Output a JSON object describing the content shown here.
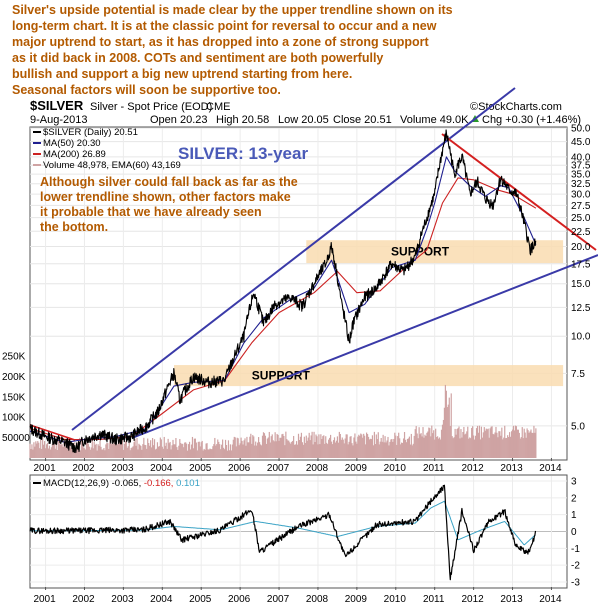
{
  "commentary": [
    "Silver's upside potential is made clear by the upper trendline shown on its",
    "long-term chart. It is at the classic point for reversal to occur and a new",
    "major uptrend to start, as it has dropped into a zone of strong support",
    "as it did back in 2008. COTs and sentiment are both powerfully",
    "bullish and support a big new uptrend starting from here.",
    "Seasonal factors will soon be supportive too."
  ],
  "header": {
    "symbol": "$SILVER",
    "description": "Silver - Spot Price (EOD)",
    "exchange": "CME",
    "date": "9-Aug-2013",
    "open": "Open 20.23",
    "high": "High 20.58",
    "low": "Low 20.05",
    "close": "Close 20.51",
    "volume": "Volume 49.0K",
    "change": "Chg +0.30 (+1.46%)",
    "change_arrow": "up-arrow-icon",
    "source": "©StockCharts.com"
  },
  "colors": {
    "price": "#000000",
    "ma50": "#1f1f8f",
    "ma200": "#cc2222",
    "trendline": "#3a3aa8",
    "downtrend": "#d42020",
    "support_zone": "#f9dcb0",
    "volume": "#cfa3a3",
    "macd": "#000000",
    "signal": "#3aa3c6",
    "note_text": "#b35a00",
    "title_text": "#4a5ab8"
  },
  "chart_data": [
    {
      "type": "line",
      "title": "SILVER: 13-year",
      "legend": [
        {
          "label": "$SILVER (Daily)",
          "value": "20.51"
        },
        {
          "label": "MA(50)",
          "value": "20.30"
        },
        {
          "label": "MA(200)",
          "value": "26.89"
        },
        {
          "label": "Volume",
          "value": "48,978, EMA(60) 43,169"
        }
      ],
      "legend_position": "top-left",
      "y_scale": "log",
      "ylim": [
        3.9,
        50
      ],
      "x_ticks": [
        "2001",
        "2002",
        "2003",
        "2004",
        "2005",
        "2006",
        "2007",
        "2008",
        "2009",
        "2010",
        "2011",
        "2012",
        "2013",
        "2014"
      ],
      "y_ticks": [
        "50.0",
        "45.0",
        "40.0",
        "37.5",
        "35.0",
        "32.5",
        "30.0",
        "27.5",
        "25.0",
        "22.5",
        "20.0",
        "17.5",
        "15.0",
        "12.5",
        "10.0",
        "7.5",
        "5.0"
      ],
      "volume_ticks": [
        "250K",
        "200K",
        "150K",
        "100K",
        "50000"
      ],
      "series": [
        {
          "name": "$SILVER (Daily)",
          "x": [
            2000.6,
            2001.0,
            2001.5,
            2001.8,
            2002.0,
            2002.4,
            2002.8,
            2003.2,
            2003.6,
            2003.9,
            2004.3,
            2004.45,
            2004.8,
            2005.2,
            2005.6,
            2005.9,
            2006.1,
            2006.35,
            2006.6,
            2006.9,
            2007.3,
            2007.6,
            2007.9,
            2008.2,
            2008.35,
            2008.6,
            2008.8,
            2008.9,
            2009.2,
            2009.5,
            2009.9,
            2010.2,
            2010.5,
            2010.8,
            2011.0,
            2011.3,
            2011.5,
            2011.7,
            2011.9,
            2012.1,
            2012.3,
            2012.5,
            2012.7,
            2012.9,
            2013.1,
            2013.3,
            2013.45,
            2013.6
          ],
          "values": [
            4.9,
            4.6,
            4.4,
            4.2,
            4.5,
            4.7,
            4.5,
            4.6,
            5.0,
            5.6,
            7.5,
            6.1,
            7.3,
            7.0,
            7.1,
            8.8,
            10.0,
            14.0,
            11.0,
            12.8,
            13.5,
            12.6,
            15.0,
            17.5,
            20.0,
            13.0,
            9.5,
            11.0,
            13.5,
            14.5,
            17.5,
            16.5,
            18.5,
            25.0,
            30.0,
            48.0,
            35.0,
            40.0,
            30.0,
            33.0,
            29.0,
            27.5,
            34.0,
            31.0,
            30.0,
            24.0,
            19.5,
            20.5
          ]
        },
        {
          "name": "MA(50)",
          "x": [
            2000.6,
            2001.5,
            2002.0,
            2002.8,
            2003.6,
            2004.3,
            2004.8,
            2005.6,
            2006.1,
            2006.6,
            2007.3,
            2007.9,
            2008.35,
            2008.8,
            2009.2,
            2009.9,
            2010.5,
            2010.8,
            2011.0,
            2011.3,
            2011.5,
            2011.9,
            2012.3,
            2012.7,
            2012.9,
            2013.3,
            2013.6
          ],
          "values": [
            4.8,
            4.4,
            4.5,
            4.6,
            4.9,
            6.8,
            7.0,
            7.1,
            9.5,
            11.5,
            13.3,
            14.5,
            18.0,
            12.0,
            12.8,
            17.0,
            18.0,
            23.0,
            28.0,
            40.0,
            36.0,
            32.0,
            29.5,
            32.0,
            31.5,
            25.0,
            20.3
          ]
        },
        {
          "name": "MA(200)",
          "x": [
            2000.6,
            2001.5,
            2002.4,
            2003.2,
            2004.0,
            2004.8,
            2005.6,
            2006.3,
            2007.0,
            2007.9,
            2008.5,
            2009.0,
            2009.6,
            2010.2,
            2010.8,
            2011.2,
            2011.6,
            2012.0,
            2012.6,
            2013.0,
            2013.6
          ],
          "values": [
            4.9,
            4.5,
            4.5,
            4.6,
            5.5,
            6.6,
            7.1,
            9.5,
            12.0,
            14.0,
            16.5,
            14.0,
            14.2,
            16.8,
            19.5,
            28.0,
            34.0,
            33.5,
            31.0,
            30.0,
            26.9
          ]
        }
      ],
      "support_zones": [
        {
          "label": "SUPPORT",
          "range": [
            17.6,
            21.0
          ],
          "x_range": [
            2007.7,
            2014.3
          ]
        },
        {
          "label": "SUPPORT",
          "range": [
            6.8,
            8.0
          ],
          "x_range": [
            2004.3,
            2014.3
          ]
        }
      ],
      "annotation": [
        "Although silver could fall back as far as the",
        "lower trendline shown, other factors make",
        "it probable that we have already seen",
        "the bottom."
      ]
    },
    {
      "type": "line",
      "title": "",
      "legend": [
        {
          "label": "MACD(12,26,9)",
          "value": "-0.065, -0.166, 0.101"
        }
      ],
      "ylim": [
        -3.3,
        3.3
      ],
      "y_ticks": [
        "3",
        "2",
        "1",
        "0",
        "-1",
        "-2",
        "-3"
      ],
      "x_ticks": [
        "2001",
        "2002",
        "2003",
        "2004",
        "2005",
        "2006",
        "2007",
        "2008",
        "2009",
        "2010",
        "2011",
        "2012",
        "2013",
        "2014"
      ],
      "series": [
        {
          "name": "MACD",
          "x": [
            2000.6,
            2002.0,
            2003.5,
            2004.2,
            2004.5,
            2005.5,
            2006.3,
            2006.5,
            2007.5,
            2008.3,
            2008.7,
            2009.5,
            2010.5,
            2010.9,
            2011.25,
            2011.4,
            2011.7,
            2012.0,
            2012.4,
            2012.8,
            2013.1,
            2013.4,
            2013.6
          ],
          "values": [
            0.05,
            0.05,
            0.1,
            0.6,
            -0.5,
            0.1,
            1.3,
            -1.2,
            0.3,
            1.0,
            -1.5,
            0.4,
            0.6,
            1.8,
            2.7,
            -2.8,
            1.2,
            -1.1,
            0.6,
            1.2,
            -0.9,
            -1.3,
            -0.07
          ]
        },
        {
          "name": "Signal",
          "x": [
            2000.6,
            2002.0,
            2003.5,
            2004.3,
            2005.5,
            2006.4,
            2007.5,
            2008.5,
            2009.5,
            2010.5,
            2010.9,
            2011.25,
            2011.6,
            2012.2,
            2012.8,
            2013.3,
            2013.6
          ],
          "values": [
            0.04,
            0.05,
            0.08,
            0.3,
            0.1,
            0.6,
            0.2,
            -0.3,
            0.3,
            0.5,
            1.4,
            1.8,
            -0.5,
            0.1,
            0.6,
            -0.8,
            -0.17
          ]
        }
      ]
    }
  ]
}
